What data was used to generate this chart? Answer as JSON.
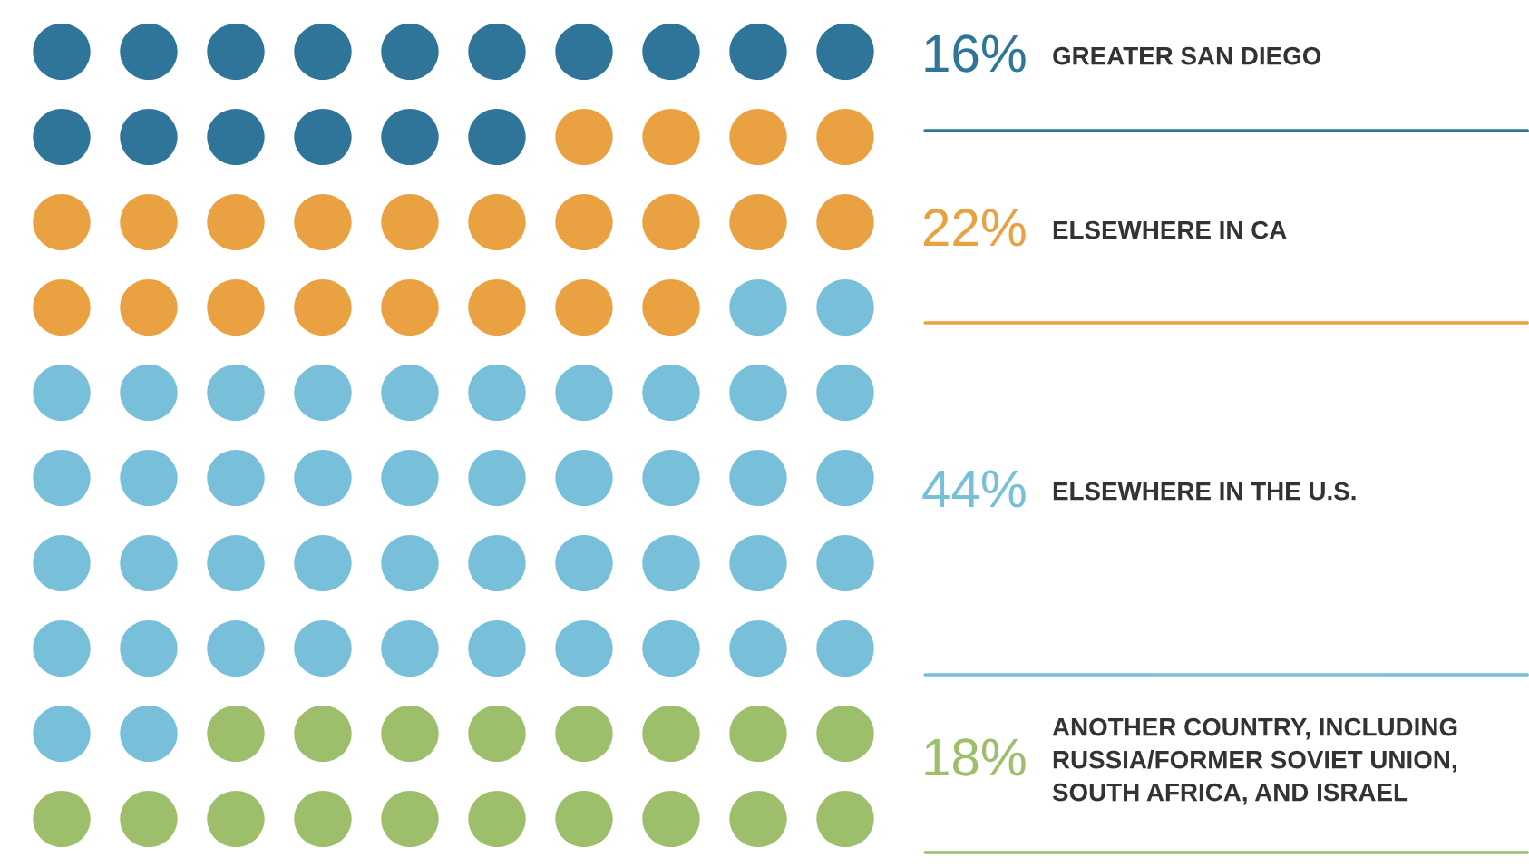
{
  "chart_data": {
    "type": "other",
    "categories": [
      "GREATER SAN DIEGO",
      "ELSEWHERE IN CA",
      "ELSEWHERE IN THE U.S.",
      "ANOTHER COUNTRY, INCLUDING\nRUSSIA/FORMER SOVIET UNION,\nSOUTH AFRICA, AND ISRAEL"
    ],
    "values": [
      16,
      22,
      44,
      18
    ],
    "value_labels": [
      "16%",
      "22%",
      "44%",
      "18%"
    ],
    "colors": [
      "#2e7599",
      "#e9a142",
      "#78bfd9",
      "#9dbf6b"
    ]
  }
}
